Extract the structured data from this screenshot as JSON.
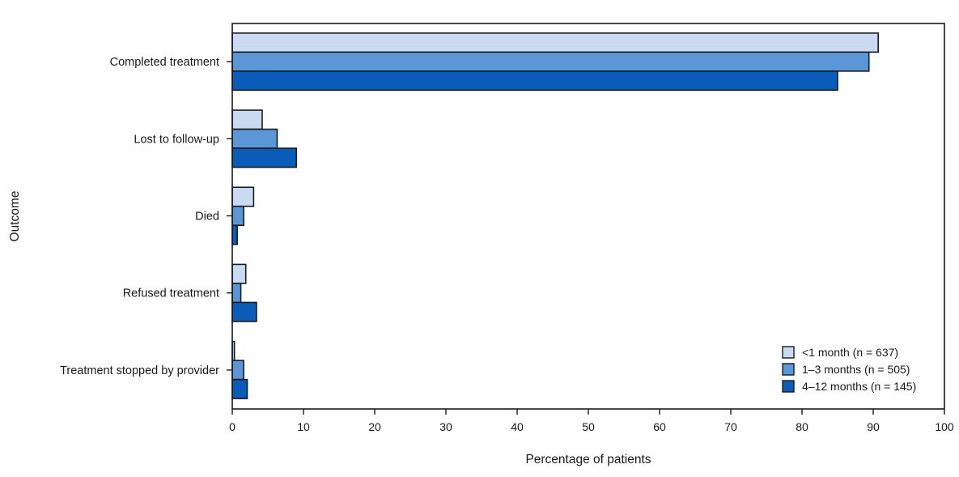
{
  "chart_data": {
    "type": "bar",
    "orientation": "horizontal",
    "title": "",
    "xlabel": "Percentage of patients",
    "ylabel": "Outcome",
    "xlim": [
      0,
      100
    ],
    "xticks": [
      "0",
      "10",
      "20",
      "30",
      "40",
      "50",
      "60",
      "70",
      "80",
      "90",
      "100"
    ],
    "grid": false,
    "legend_position": "bottom-right",
    "categories": [
      "Completed treatment",
      "Lost to follow-up",
      "Died",
      "Refused treatment",
      "Treatment stopped by provider"
    ],
    "series": [
      {
        "name": "<1 month (n = 637)",
        "color": "#c9daf1",
        "values": [
          90.7,
          4.2,
          3.0,
          1.9,
          0.3
        ]
      },
      {
        "name": "1–3 months (n = 505)",
        "color": "#5b97d6",
        "values": [
          89.4,
          6.3,
          1.6,
          1.2,
          1.6
        ]
      },
      {
        "name": "4–12 months (n = 145)",
        "color": "#0a5cb8",
        "values": [
          85.0,
          9.0,
          0.7,
          3.4,
          2.1
        ]
      }
    ]
  }
}
